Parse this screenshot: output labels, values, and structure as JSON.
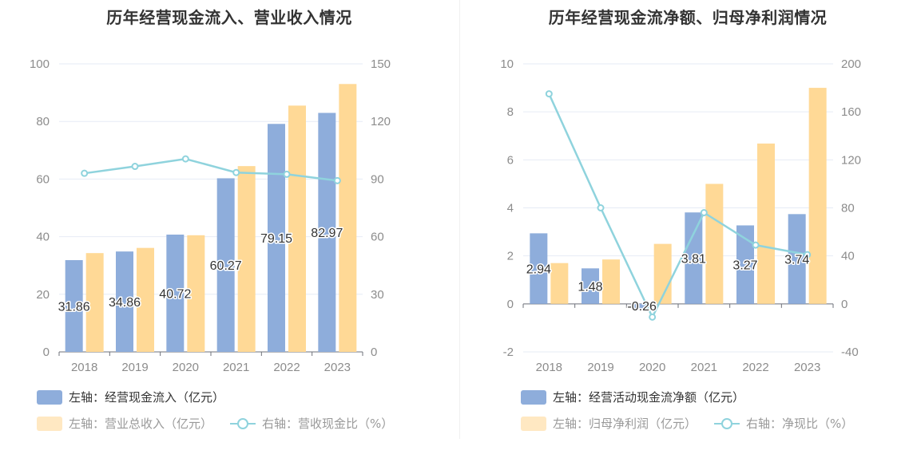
{
  "chart_data": [
    {
      "type": "bar",
      "title": "历年经营现金流入、营业收入情况",
      "categories": [
        "2018",
        "2019",
        "2020",
        "2021",
        "2022",
        "2023"
      ],
      "left_axis": {
        "ylim": [
          0,
          100
        ],
        "ticks": [
          "0",
          "20",
          "40",
          "60",
          "80",
          "100"
        ]
      },
      "right_axis": {
        "ylim": [
          0,
          150
        ],
        "ticks": [
          "0",
          "30",
          "60",
          "90",
          "120",
          "150"
        ]
      },
      "series": [
        {
          "name": "左轴：经营现金流入（亿元）",
          "type": "bar",
          "axis": "left",
          "color": "#8eaddb",
          "values": [
            31.86,
            34.86,
            40.72,
            60.27,
            79.15,
            82.97
          ],
          "labels": [
            "31.86",
            "34.86",
            "40.72",
            "60.27",
            "79.15",
            "82.97"
          ]
        },
        {
          "name": "左轴：营业总收入（亿元）",
          "type": "bar",
          "axis": "left",
          "color": "#ffd996",
          "values": [
            34.3,
            36.1,
            40.5,
            64.5,
            85.5,
            93.0
          ]
        },
        {
          "name": "右轴：营收现金比（%）",
          "type": "line",
          "axis": "right",
          "color": "#8fd3dd",
          "values": [
            93.0,
            96.6,
            100.5,
            93.4,
            92.5,
            89.2
          ]
        }
      ]
    },
    {
      "type": "bar",
      "title": "历年经营现金流净额、归母净利润情况",
      "categories": [
        "2018",
        "2019",
        "2020",
        "2021",
        "2022",
        "2023"
      ],
      "left_axis": {
        "ylim": [
          -2,
          10
        ],
        "ticks": [
          "-2",
          "0",
          "2",
          "4",
          "6",
          "8",
          "10"
        ]
      },
      "right_axis": {
        "ylim": [
          -40,
          200
        ],
        "ticks": [
          "-40",
          "0",
          "40",
          "80",
          "120",
          "160",
          "200"
        ]
      },
      "series": [
        {
          "name": "左轴：经营活动现金流净额（亿元）",
          "type": "bar",
          "axis": "left",
          "color": "#8eaddb",
          "values": [
            2.94,
            1.48,
            -0.26,
            3.81,
            3.27,
            3.74
          ],
          "labels": [
            "2.94",
            "1.48",
            "-0.26",
            "3.81",
            "3.27",
            "3.74"
          ]
        },
        {
          "name": "左轴：归母净利润（亿元）",
          "type": "bar",
          "axis": "left",
          "color": "#ffd996",
          "values": [
            1.7,
            1.85,
            2.5,
            5.0,
            6.68,
            9.0
          ]
        },
        {
          "name": "右轴：净现比（%）",
          "type": "line",
          "axis": "right",
          "color": "#8fd3dd",
          "values": [
            175,
            80,
            -11,
            76,
            49,
            41
          ]
        }
      ]
    }
  ]
}
